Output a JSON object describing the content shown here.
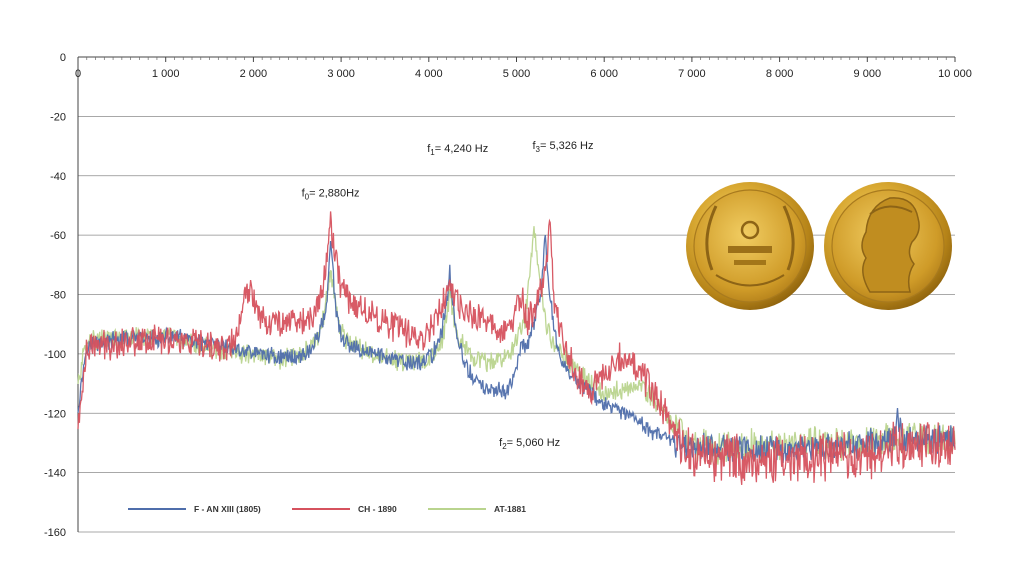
{
  "chart_data": {
    "type": "line",
    "title": "",
    "xlabel": "",
    "ylabel": "",
    "xlim": [
      0,
      10000
    ],
    "ylim": [
      -160,
      0
    ],
    "x_ticks": [
      "0",
      "1 000",
      "2 000",
      "3 000",
      "4 000",
      "5 000",
      "6 000",
      "7 000",
      "8 000",
      "9 000",
      "10 000"
    ],
    "y_ticks": [
      "0",
      "-20",
      "-40",
      "-60",
      "-80",
      "-100",
      "-120",
      "-140",
      "-160"
    ],
    "x_axis_position": "top",
    "grid": "horizontal",
    "legend_position": "bottom-left",
    "annotations": [
      {
        "sym": "f",
        "sub": "0",
        "rest": "= 2,880Hz",
        "x": 2880,
        "y": -47
      },
      {
        "sym": "f",
        "sub": "1",
        "rest": "= 4,240 Hz",
        "x": 4330,
        "y": -32
      },
      {
        "sym": "f",
        "sub": "3",
        "rest": "= 5,326 Hz",
        "x": 5530,
        "y": -31
      },
      {
        "sym": "f",
        "sub": "2",
        "rest": "= 5,060 Hz",
        "x": 5150,
        "y": -131
      }
    ],
    "series": [
      {
        "name": "F - AN XIII (1805)",
        "color": "#4f6eab",
        "points": [
          [
            0,
            -118
          ],
          [
            100,
            -97
          ],
          [
            300,
            -96
          ],
          [
            500,
            -95
          ],
          [
            700,
            -95
          ],
          [
            900,
            -95
          ],
          [
            1100,
            -94
          ],
          [
            1300,
            -96
          ],
          [
            1500,
            -97
          ],
          [
            1700,
            -98
          ],
          [
            1900,
            -99
          ],
          [
            2100,
            -100
          ],
          [
            2300,
            -101
          ],
          [
            2500,
            -101
          ],
          [
            2650,
            -99
          ],
          [
            2750,
            -93
          ],
          [
            2830,
            -85
          ],
          [
            2860,
            -70
          ],
          [
            2880,
            -62
          ],
          [
            2900,
            -70
          ],
          [
            2940,
            -86
          ],
          [
            3000,
            -94
          ],
          [
            3100,
            -98
          ],
          [
            3300,
            -99
          ],
          [
            3500,
            -101
          ],
          [
            3700,
            -103
          ],
          [
            3900,
            -103
          ],
          [
            4050,
            -100
          ],
          [
            4150,
            -92
          ],
          [
            4220,
            -80
          ],
          [
            4240,
            -70
          ],
          [
            4260,
            -80
          ],
          [
            4320,
            -95
          ],
          [
            4450,
            -106
          ],
          [
            4600,
            -111
          ],
          [
            4750,
            -113
          ],
          [
            4900,
            -112
          ],
          [
            5000,
            -106
          ],
          [
            5060,
            -95
          ],
          [
            5100,
            -99
          ],
          [
            5200,
            -90
          ],
          [
            5280,
            -80
          ],
          [
            5326,
            -60
          ],
          [
            5360,
            -74
          ],
          [
            5420,
            -90
          ],
          [
            5500,
            -102
          ],
          [
            5650,
            -108
          ],
          [
            5800,
            -112
          ],
          [
            6000,
            -117
          ],
          [
            6200,
            -120
          ],
          [
            6400,
            -123
          ],
          [
            6600,
            -127
          ],
          [
            6800,
            -130
          ],
          [
            7000,
            -131
          ],
          [
            7200,
            -131
          ],
          [
            7500,
            -132
          ],
          [
            7800,
            -132
          ],
          [
            8100,
            -132
          ],
          [
            8400,
            -132
          ],
          [
            8700,
            -131
          ],
          [
            9000,
            -130
          ],
          [
            9300,
            -129
          ],
          [
            9350,
            -120
          ],
          [
            9400,
            -129
          ],
          [
            9700,
            -129
          ],
          [
            10000,
            -128
          ]
        ],
        "noise": 2.5
      },
      {
        "name": "CH - 1890",
        "color": "#d6525e",
        "points": [
          [
            0,
            -125
          ],
          [
            100,
            -98
          ],
          [
            300,
            -97
          ],
          [
            500,
            -96
          ],
          [
            700,
            -95
          ],
          [
            900,
            -95
          ],
          [
            1100,
            -95
          ],
          [
            1300,
            -97
          ],
          [
            1500,
            -98
          ],
          [
            1700,
            -98
          ],
          [
            1800,
            -95
          ],
          [
            1900,
            -82
          ],
          [
            1960,
            -78
          ],
          [
            2050,
            -85
          ],
          [
            2200,
            -90
          ],
          [
            2400,
            -88
          ],
          [
            2550,
            -89
          ],
          [
            2700,
            -88
          ],
          [
            2800,
            -76
          ],
          [
            2860,
            -60
          ],
          [
            2880,
            -52
          ],
          [
            2900,
            -62
          ],
          [
            3000,
            -77
          ],
          [
            3100,
            -82
          ],
          [
            3300,
            -86
          ],
          [
            3500,
            -89
          ],
          [
            3700,
            -92
          ],
          [
            3900,
            -95
          ],
          [
            4000,
            -92
          ],
          [
            4100,
            -86
          ],
          [
            4200,
            -80
          ],
          [
            4240,
            -75
          ],
          [
            4280,
            -82
          ],
          [
            4400,
            -86
          ],
          [
            4600,
            -88
          ],
          [
            4800,
            -92
          ],
          [
            4950,
            -90
          ],
          [
            5000,
            -84
          ],
          [
            5060,
            -81
          ],
          [
            5120,
            -90
          ],
          [
            5250,
            -82
          ],
          [
            5326,
            -72
          ],
          [
            5380,
            -57
          ],
          [
            5430,
            -82
          ],
          [
            5550,
            -98
          ],
          [
            5700,
            -108
          ],
          [
            5850,
            -112
          ],
          [
            6000,
            -108
          ],
          [
            6150,
            -100
          ],
          [
            6300,
            -102
          ],
          [
            6450,
            -108
          ],
          [
            6600,
            -115
          ],
          [
            6750,
            -122
          ],
          [
            6900,
            -132
          ],
          [
            7100,
            -134
          ],
          [
            7400,
            -135
          ],
          [
            7700,
            -136
          ],
          [
            8000,
            -136
          ],
          [
            8300,
            -135
          ],
          [
            8600,
            -135
          ],
          [
            8900,
            -134
          ],
          [
            9200,
            -132
          ],
          [
            9400,
            -131
          ],
          [
            9700,
            -130
          ],
          [
            10000,
            -130
          ]
        ],
        "noise": 4.5
      },
      {
        "name": "AT-1881",
        "color": "#b9d48e",
        "points": [
          [
            0,
            -110
          ],
          [
            100,
            -95
          ],
          [
            300,
            -95
          ],
          [
            500,
            -95
          ],
          [
            700,
            -94
          ],
          [
            900,
            -94
          ],
          [
            1100,
            -95
          ],
          [
            1300,
            -96
          ],
          [
            1500,
            -98
          ],
          [
            1700,
            -99
          ],
          [
            1900,
            -100
          ],
          [
            2100,
            -101
          ],
          [
            2300,
            -102
          ],
          [
            2500,
            -101
          ],
          [
            2700,
            -97
          ],
          [
            2800,
            -88
          ],
          [
            2860,
            -76
          ],
          [
            2880,
            -72
          ],
          [
            2900,
            -77
          ],
          [
            2960,
            -88
          ],
          [
            3050,
            -95
          ],
          [
            3200,
            -98
          ],
          [
            3400,
            -101
          ],
          [
            3600,
            -102
          ],
          [
            3800,
            -103
          ],
          [
            4000,
            -102
          ],
          [
            4150,
            -96
          ],
          [
            4220,
            -84
          ],
          [
            4240,
            -78
          ],
          [
            4260,
            -84
          ],
          [
            4350,
            -95
          ],
          [
            4500,
            -102
          ],
          [
            4700,
            -103
          ],
          [
            4900,
            -100
          ],
          [
            5000,
            -96
          ],
          [
            5100,
            -88
          ],
          [
            5200,
            -57
          ],
          [
            5250,
            -70
          ],
          [
            5326,
            -88
          ],
          [
            5400,
            -95
          ],
          [
            5600,
            -103
          ],
          [
            5800,
            -108
          ],
          [
            6000,
            -114
          ],
          [
            6200,
            -112
          ],
          [
            6400,
            -110
          ],
          [
            6550,
            -115
          ],
          [
            6700,
            -121
          ],
          [
            6900,
            -127
          ],
          [
            7100,
            -131
          ],
          [
            7400,
            -132
          ],
          [
            7700,
            -131
          ],
          [
            8000,
            -131
          ],
          [
            8300,
            -130
          ],
          [
            8600,
            -130
          ],
          [
            8900,
            -130
          ],
          [
            9200,
            -129
          ],
          [
            9500,
            -128
          ],
          [
            9800,
            -128
          ],
          [
            10000,
            -129
          ]
        ],
        "noise": 3.0
      }
    ]
  }
}
